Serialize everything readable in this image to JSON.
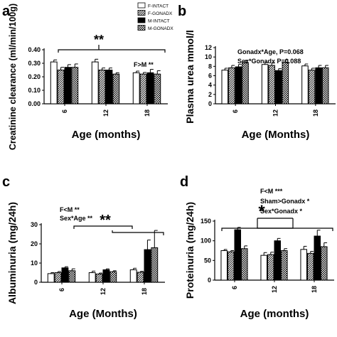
{
  "chart_data": [
    {
      "panel": "a",
      "type": "bar",
      "ylabel": "Creatinine clearance (ml/min/100g)",
      "xlabel": "Age (months)",
      "categories": [
        "6",
        "12",
        "18"
      ],
      "ylim": [
        0,
        0.4
      ],
      "yticks": [
        "0.00",
        "0.10",
        "0.20",
        "0.30",
        "0.40"
      ],
      "series": [
        {
          "name": "F-INTACT",
          "values": [
            0.31,
            0.31,
            0.23
          ],
          "errors": [
            0.015,
            0.02,
            0.012
          ]
        },
        {
          "name": "F-GONADX",
          "values": [
            0.25,
            0.25,
            0.22
          ],
          "errors": [
            0.02,
            0.015,
            0.012
          ]
        },
        {
          "name": "M-INTACT",
          "values": [
            0.27,
            0.25,
            0.23
          ],
          "errors": [
            0.02,
            0.015,
            0.025
          ]
        },
        {
          "name": "M-GONADX",
          "values": [
            0.27,
            0.22,
            0.22
          ],
          "errors": [
            0.025,
            0.01,
            0.025
          ]
        }
      ],
      "annotations": {
        "stars": "**",
        "notes": [
          "F>M **"
        ]
      }
    },
    {
      "panel": "b",
      "type": "bar",
      "ylabel": "Plasma urea mmol/l",
      "xlabel": "Age (Months)",
      "categories": [
        "6",
        "12",
        "18"
      ],
      "ylim": [
        0,
        12
      ],
      "yticks": [
        "0",
        "2",
        "4",
        "6",
        "8",
        "10",
        "12"
      ],
      "series": [
        {
          "name": "F-INTACT",
          "values": [
            7.2,
            8.4,
            8.1
          ],
          "errors": [
            0.4,
            0.4,
            0.4
          ]
        },
        {
          "name": "F-GONADX",
          "values": [
            7.7,
            8.2,
            7.2
          ],
          "errors": [
            0.5,
            0.5,
            0.4
          ]
        },
        {
          "name": "M-INTACT",
          "values": [
            7.9,
            7.1,
            7.7
          ],
          "errors": [
            0.5,
            0.4,
            0.5
          ]
        },
        {
          "name": "M-GONADX",
          "values": [
            8.8,
            8.9,
            7.7
          ],
          "errors": [
            0.5,
            0.5,
            0.5
          ]
        }
      ],
      "annotations": {
        "notes": [
          "Gonadx*Age, P=0.068",
          "Sex*Gonadx P=0.088"
        ]
      }
    },
    {
      "panel": "c",
      "type": "bar",
      "ylabel": "Albuminuria (mg/24h)",
      "xlabel": "Age (Months)",
      "categories": [
        "6",
        "12",
        "18"
      ],
      "ylim": [
        0,
        30
      ],
      "yticks": [
        "0",
        "10",
        "20",
        "30"
      ],
      "series": [
        {
          "name": "F-INTACT",
          "values": [
            4.5,
            5.0,
            6.5
          ],
          "errors": [
            0.5,
            0.8,
            0.8
          ]
        },
        {
          "name": "F-GONADX",
          "values": [
            5.0,
            4.3,
            5.2
          ],
          "errors": [
            0.6,
            0.5,
            0.5
          ]
        },
        {
          "name": "M-INTACT",
          "values": [
            7.5,
            6.5,
            17.0
          ],
          "errors": [
            0.6,
            0.5,
            5.0
          ]
        },
        {
          "name": "M-GONADX",
          "values": [
            6.0,
            5.5,
            18.0
          ],
          "errors": [
            1.0,
            0.5,
            9.0
          ]
        }
      ],
      "annotations": {
        "stars": "**",
        "notes": [
          "F<M **",
          "Sex*Age **"
        ]
      }
    },
    {
      "panel": "d",
      "type": "bar",
      "ylabel": "Proteinuria (mg/24h)",
      "xlabel": "Age (months)",
      "categories": [
        "6",
        "12",
        "18"
      ],
      "ylim": [
        0,
        150
      ],
      "yticks": [
        "0",
        "50",
        "100",
        "150"
      ],
      "series": [
        {
          "name": "F-INTACT",
          "values": [
            75,
            63,
            78
          ],
          "errors": [
            3,
            7,
            8
          ]
        },
        {
          "name": "F-GONADX",
          "values": [
            72,
            65,
            68
          ],
          "errors": [
            3,
            6,
            5
          ]
        },
        {
          "name": "M-INTACT",
          "values": [
            128,
            100,
            112
          ],
          "errors": [
            6,
            6,
            15
          ]
        },
        {
          "name": "M-GONADX",
          "values": [
            80,
            75,
            85
          ],
          "errors": [
            7,
            5,
            10
          ]
        }
      ],
      "annotations": {
        "stars": "*",
        "notes": [
          "F<M ***",
          "Sham>Gonadx *",
          "Sex*Gonadx *"
        ]
      }
    }
  ],
  "legend": [
    "F-INTACT",
    "F-GONADX",
    "M-INTACT",
    "M-GONADX"
  ],
  "colors": {
    "bar_black": "#000000",
    "bar_white": "#ffffff",
    "axis": "#000000"
  }
}
